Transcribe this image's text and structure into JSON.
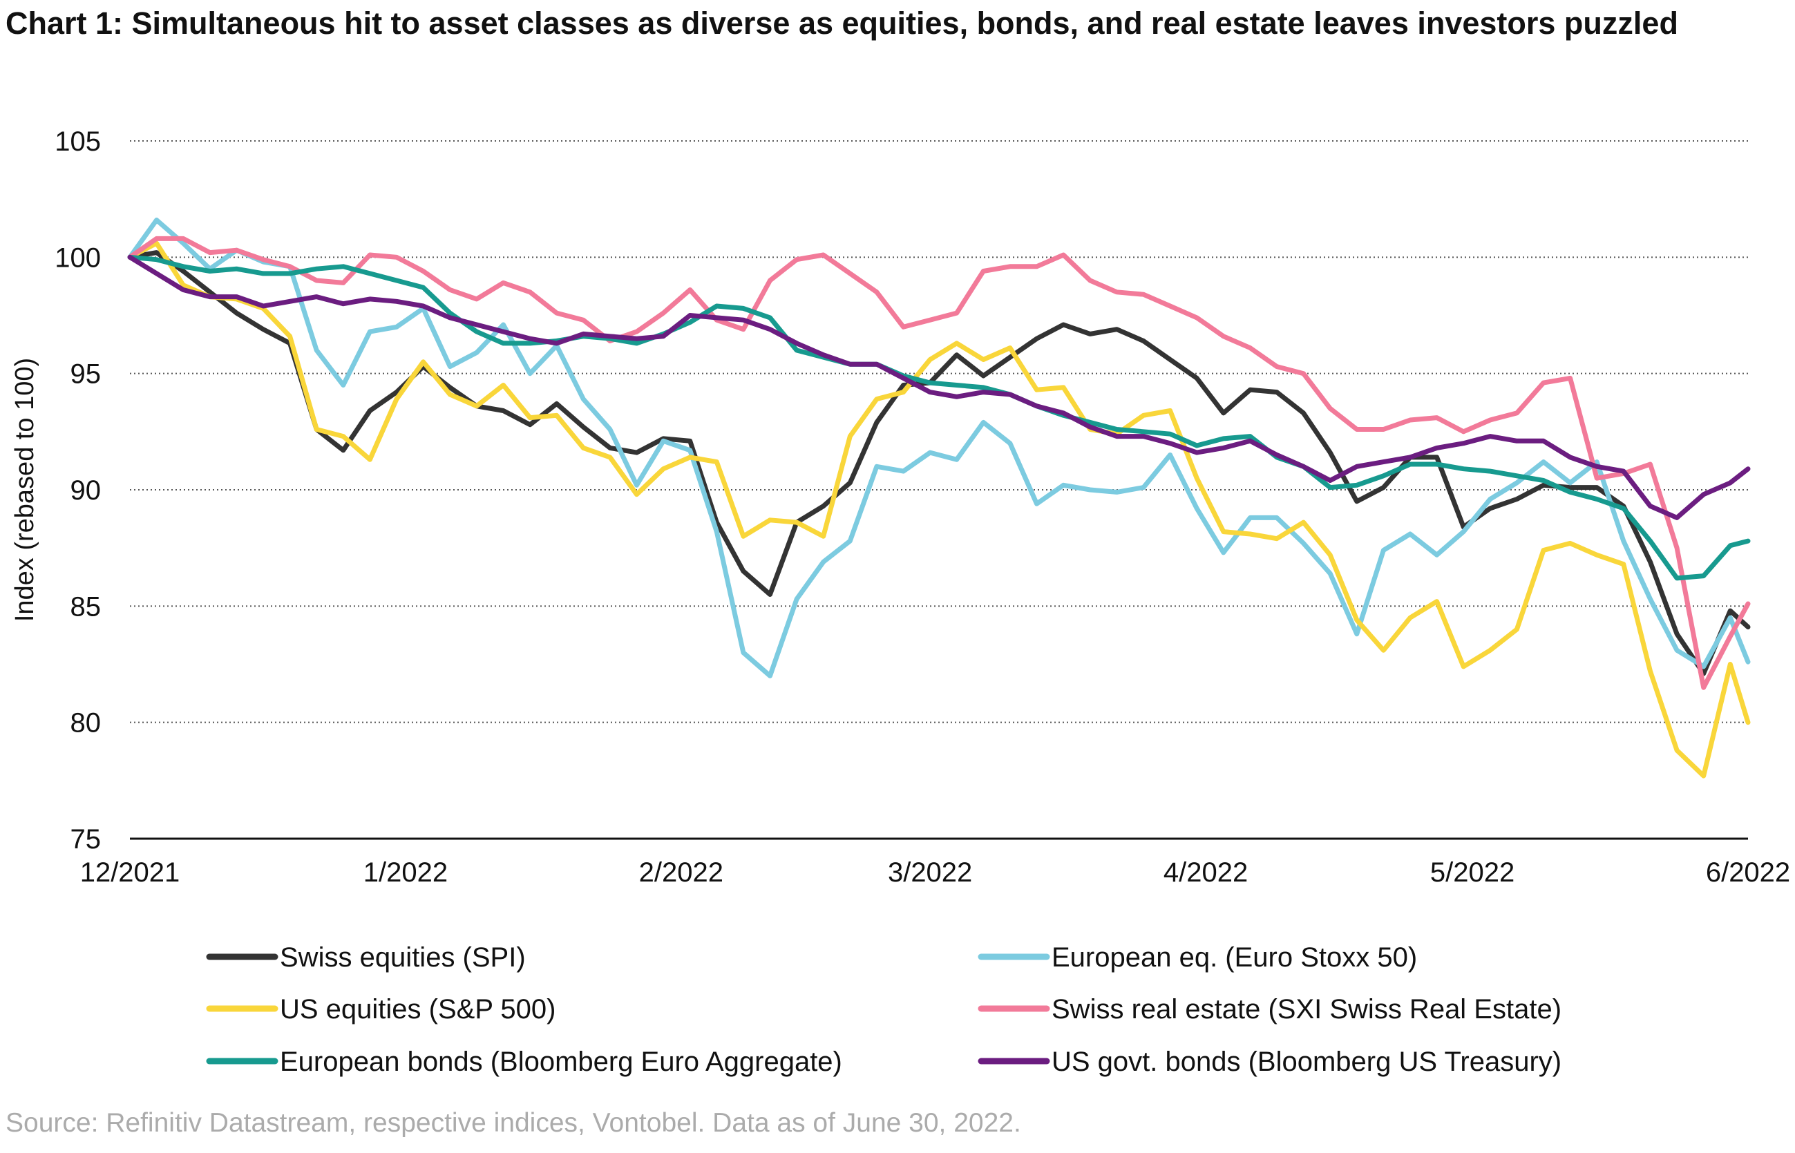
{
  "title": "Chart 1: Simultaneous hit to asset classes as diverse as equities, bonds, and real estate leaves investors puzzled",
  "source": "Source: Refinitiv Datastream, respective indices, Vontobel. Data as of June 30, 2022.",
  "chart_data": {
    "type": "line",
    "title": "Chart 1: Simultaneous hit to asset classes as diverse as equities, bonds, and real estate leaves investors puzzled",
    "xlabel": "",
    "ylabel": "Index (rebased to 100)",
    "ylim": [
      75,
      105
    ],
    "yticks": [
      "75",
      "80",
      "85",
      "90",
      "95",
      "100",
      "105"
    ],
    "xlim": [
      "2021-12-01",
      "2022-06-01"
    ],
    "xticks": [
      {
        "date": "2021-12-01",
        "label": "12/2021"
      },
      {
        "date": "2022-01-01",
        "label": "1/2022"
      },
      {
        "date": "2022-02-01",
        "label": "2/2022"
      },
      {
        "date": "2022-03-01",
        "label": "3/2022"
      },
      {
        "date": "2022-04-01",
        "label": "4/2022"
      },
      {
        "date": "2022-05-01",
        "label": "5/2022"
      },
      {
        "date": "2022-06-01",
        "label": "6/2022"
      }
    ],
    "grid": "horizontal dotted",
    "legend": "bottom, two columns",
    "x": [
      "2021-12-01",
      "2021-12-04",
      "2021-12-07",
      "2021-12-10",
      "2021-12-13",
      "2021-12-16",
      "2021-12-19",
      "2021-12-22",
      "2021-12-25",
      "2021-12-28",
      "2021-12-31",
      "2022-01-03",
      "2022-01-06",
      "2022-01-09",
      "2022-01-12",
      "2022-01-15",
      "2022-01-18",
      "2022-01-21",
      "2022-01-24",
      "2022-01-27",
      "2022-01-30",
      "2022-02-02",
      "2022-02-05",
      "2022-02-08",
      "2022-02-11",
      "2022-02-14",
      "2022-02-17",
      "2022-02-20",
      "2022-02-23",
      "2022-02-26",
      "2022-03-01",
      "2022-03-04",
      "2022-03-07",
      "2022-03-10",
      "2022-03-13",
      "2022-03-16",
      "2022-03-19",
      "2022-03-22",
      "2022-03-25",
      "2022-03-28",
      "2022-03-31",
      "2022-04-03",
      "2022-04-06",
      "2022-04-09",
      "2022-04-12",
      "2022-04-15",
      "2022-04-18",
      "2022-04-21",
      "2022-04-24",
      "2022-04-27",
      "2022-04-30",
      "2022-05-03",
      "2022-05-06",
      "2022-05-09",
      "2022-05-12",
      "2022-05-15",
      "2022-05-18",
      "2022-05-21",
      "2022-05-24",
      "2022-05-27",
      "2022-05-30",
      "2022-06-01"
    ],
    "series": [
      {
        "name": "Swiss equities (SPI)",
        "color": "#333333",
        "values": [
          100,
          100.2,
          99.4,
          98.5,
          97.6,
          96.9,
          96.3,
          92.6,
          91.7,
          93.4,
          94.2,
          95.3,
          94.4,
          93.6,
          93.4,
          92.8,
          93.7,
          92.7,
          91.8,
          91.6,
          92.2,
          92.1,
          88.6,
          86.5,
          85.5,
          88.6,
          89.3,
          90.3,
          92.9,
          94.5,
          94.6,
          95.8,
          94.9,
          95.7,
          96.5,
          97.1,
          96.7,
          96.9,
          96.4,
          95.6,
          94.8,
          93.3,
          94.3,
          94.2,
          93.3,
          91.6,
          89.5,
          90.1,
          91.4,
          91.4,
          88.4,
          89.2,
          89.6,
          90.2,
          90.1,
          90.1,
          89.3,
          86.9,
          83.8,
          82.1,
          84.8,
          84.1
        ]
      },
      {
        "name": "European eq. (Euro Stoxx 50)",
        "color": "#7ccbe0",
        "values": [
          100,
          101.6,
          100.6,
          99.5,
          100.3,
          99.8,
          99.6,
          96.0,
          94.5,
          96.8,
          97.0,
          97.8,
          95.3,
          95.9,
          97.1,
          95.0,
          96.2,
          93.9,
          92.6,
          90.2,
          92.1,
          91.7,
          88.2,
          83.0,
          82.0,
          85.3,
          86.9,
          87.8,
          91.0,
          90.8,
          91.6,
          91.3,
          92.9,
          92.0,
          89.4,
          90.2,
          90.0,
          89.9,
          90.1,
          91.5,
          89.2,
          87.3,
          88.8,
          88.8,
          87.7,
          86.4,
          83.8,
          87.4,
          88.1,
          87.2,
          88.2,
          89.6,
          90.3,
          91.2,
          90.3,
          91.2,
          87.8,
          85.3,
          83.1,
          82.4,
          84.5,
          82.6
        ]
      },
      {
        "name": "US equities (S&P 500)",
        "color": "#f9d63a",
        "values": [
          100,
          100.6,
          98.8,
          98.3,
          98.2,
          97.8,
          96.6,
          92.6,
          92.3,
          91.3,
          93.9,
          95.5,
          94.1,
          93.6,
          94.5,
          93.1,
          93.2,
          91.8,
          91.4,
          89.8,
          90.9,
          91.4,
          91.2,
          88.0,
          88.7,
          88.6,
          88.0,
          92.3,
          93.9,
          94.2,
          95.6,
          96.3,
          95.6,
          96.1,
          94.3,
          94.4,
          92.6,
          92.4,
          93.2,
          93.4,
          90.5,
          88.2,
          88.1,
          87.9,
          88.6,
          87.2,
          84.4,
          83.1,
          84.5,
          85.2,
          82.4,
          83.1,
          84.0,
          87.4,
          87.7,
          87.2,
          86.8,
          82.2,
          78.8,
          77.7,
          82.5,
          80.0
        ]
      },
      {
        "name": "Swiss real estate (SXI Swiss Real Estate)",
        "color": "#f27a99",
        "values": [
          100,
          100.8,
          100.8,
          100.2,
          100.3,
          99.9,
          99.6,
          99.0,
          98.9,
          100.1,
          100.0,
          99.4,
          98.6,
          98.2,
          98.9,
          98.5,
          97.6,
          97.3,
          96.4,
          96.8,
          97.6,
          98.6,
          97.3,
          96.9,
          99.0,
          99.9,
          100.1,
          99.3,
          98.5,
          97.0,
          97.3,
          97.6,
          99.4,
          99.6,
          99.6,
          100.1,
          99.0,
          98.5,
          98.4,
          97.9,
          97.4,
          96.6,
          96.1,
          95.3,
          95.0,
          93.5,
          92.6,
          92.6,
          93.0,
          93.1,
          92.5,
          93.0,
          93.3,
          94.6,
          94.8,
          90.5,
          90.7,
          91.1,
          87.5,
          81.5,
          83.7,
          85.1
        ]
      },
      {
        "name": "European bonds (Bloomberg Euro Aggregate)",
        "color": "#179a8f",
        "values": [
          100,
          99.9,
          99.6,
          99.4,
          99.5,
          99.3,
          99.3,
          99.5,
          99.6,
          99.3,
          99.0,
          98.7,
          97.6,
          96.8,
          96.3,
          96.3,
          96.4,
          96.6,
          96.5,
          96.3,
          96.7,
          97.2,
          97.9,
          97.8,
          97.4,
          96.0,
          95.7,
          95.4,
          95.4,
          94.9,
          94.6,
          94.5,
          94.4,
          94.1,
          93.6,
          93.2,
          92.9,
          92.6,
          92.5,
          92.4,
          91.9,
          92.2,
          92.3,
          91.4,
          91.0,
          90.1,
          90.2,
          90.6,
          91.1,
          91.1,
          90.9,
          90.8,
          90.6,
          90.4,
          89.9,
          89.6,
          89.2,
          87.8,
          86.2,
          86.3,
          87.6,
          87.8
        ]
      },
      {
        "name": "US govt. bonds (Bloomberg US Treasury)",
        "color": "#6b1d80",
        "values": [
          100,
          99.3,
          98.6,
          98.3,
          98.3,
          97.9,
          98.1,
          98.3,
          98.0,
          98.2,
          98.1,
          97.9,
          97.4,
          97.1,
          96.8,
          96.5,
          96.3,
          96.7,
          96.6,
          96.5,
          96.6,
          97.5,
          97.4,
          97.3,
          96.9,
          96.3,
          95.8,
          95.4,
          95.4,
          94.8,
          94.2,
          94.0,
          94.2,
          94.1,
          93.6,
          93.3,
          92.7,
          92.3,
          92.3,
          92.0,
          91.6,
          91.8,
          92.1,
          91.5,
          91.0,
          90.4,
          91.0,
          91.2,
          91.4,
          91.8,
          92.0,
          92.3,
          92.1,
          92.1,
          91.4,
          91.0,
          90.8,
          89.3,
          88.8,
          89.8,
          90.3,
          90.9
        ]
      }
    ]
  }
}
